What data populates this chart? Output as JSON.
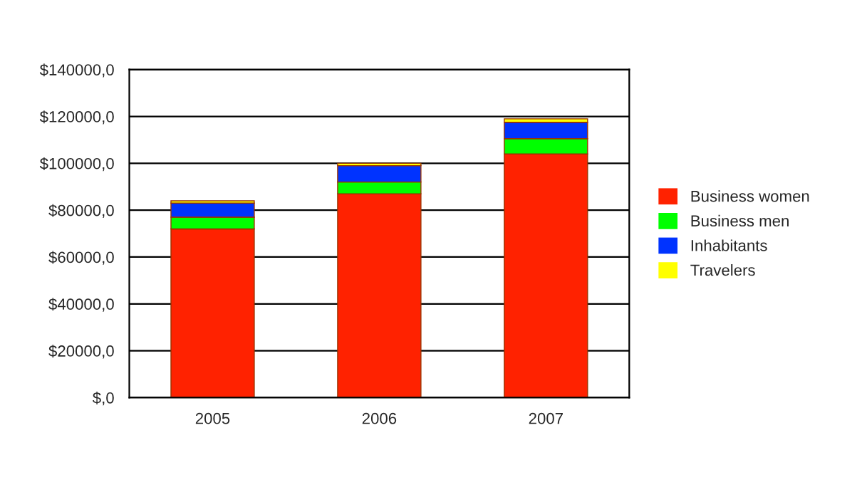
{
  "chart_data": {
    "type": "bar",
    "stacked": true,
    "categories": [
      "2005",
      "2006",
      "2007"
    ],
    "series": [
      {
        "name": "Business women",
        "color": "#ff2200",
        "values": [
          72000,
          87000,
          104000
        ]
      },
      {
        "name": "Business men",
        "color": "#00ff00",
        "values": [
          5000,
          5000,
          6500
        ]
      },
      {
        "name": "Inhabitants",
        "color": "#0033ff",
        "values": [
          6000,
          7000,
          7000
        ]
      },
      {
        "name": "Travelers",
        "color": "#ffff00",
        "values": [
          1000,
          1000,
          1500
        ]
      }
    ],
    "ylim": [
      0,
      140000
    ],
    "yticks": [
      {
        "value": 0,
        "label": "$,0"
      },
      {
        "value": 20000,
        "label": "$20000,0"
      },
      {
        "value": 40000,
        "label": "$40000,0"
      },
      {
        "value": 60000,
        "label": "$60000,0"
      },
      {
        "value": 80000,
        "label": "$80000,0"
      },
      {
        "value": 100000,
        "label": "$100000,0"
      },
      {
        "value": 120000,
        "label": "$120000,0"
      },
      {
        "value": 140000,
        "label": "$140000,0"
      }
    ],
    "grid": "y",
    "legend": "right"
  }
}
